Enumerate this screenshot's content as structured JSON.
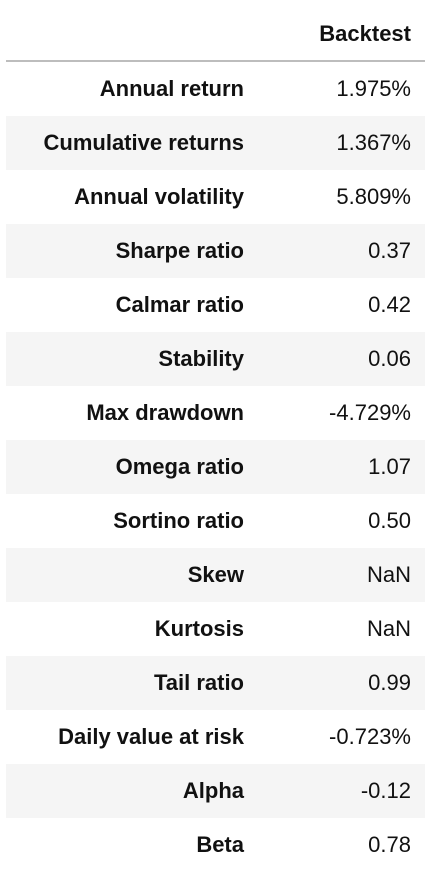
{
  "table": {
    "header": {
      "label_header": "",
      "value_header": "Backtest"
    },
    "rows": [
      {
        "label": "Annual return",
        "value": "1.975%"
      },
      {
        "label": "Cumulative returns",
        "value": "1.367%"
      },
      {
        "label": "Annual volatility",
        "value": "5.809%"
      },
      {
        "label": "Sharpe ratio",
        "value": "0.37"
      },
      {
        "label": "Calmar ratio",
        "value": "0.42"
      },
      {
        "label": "Stability",
        "value": "0.06"
      },
      {
        "label": "Max drawdown",
        "value": "-4.729%"
      },
      {
        "label": "Omega ratio",
        "value": "1.07"
      },
      {
        "label": "Sortino ratio",
        "value": "0.50"
      },
      {
        "label": "Skew",
        "value": "NaN"
      },
      {
        "label": "Kurtosis",
        "value": "NaN"
      },
      {
        "label": "Tail ratio",
        "value": "0.99"
      },
      {
        "label": "Daily value at risk",
        "value": "-0.723%"
      },
      {
        "label": "Alpha",
        "value": "-0.12"
      },
      {
        "label": "Beta",
        "value": "0.78"
      }
    ]
  },
  "colors": {
    "stripe": "#f5f5f5",
    "header_rule": "#bdbdbd",
    "text": "#111111"
  }
}
